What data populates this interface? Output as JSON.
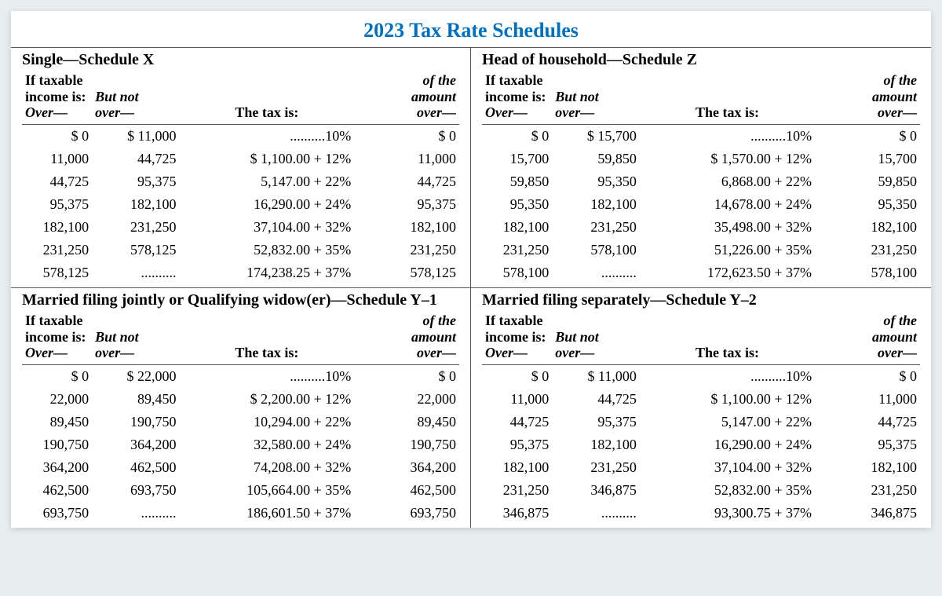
{
  "title": "2023 Tax Rate Schedules",
  "header": {
    "col1_line1": "If taxable",
    "col1_line2": "income is:",
    "col1_line3": "Over—",
    "col2_line1": "But not",
    "col2_line2": "over—",
    "col3": "The tax is:",
    "col4_line1": "of the",
    "col4_line2": "amount",
    "col4_line3": "over—"
  },
  "colors": {
    "title": "#0070c0",
    "rule": "#555555",
    "background": "#e8edf0",
    "text": "#000000"
  },
  "typography": {
    "title_size_pt": 20,
    "section_size_pt": 15,
    "body_size_pt": 13,
    "family": "Times New Roman / serif"
  },
  "schedules": {
    "X": {
      "title": "Single—Schedule X",
      "rows": [
        {
          "over": "$        0",
          "butnot": "$ 11,000",
          "tax": "..........10%",
          "ofamt": "$        0"
        },
        {
          "over": "11,000",
          "butnot": "44,725",
          "tax": "$   1,100.00 + 12%",
          "ofamt": "11,000"
        },
        {
          "over": "44,725",
          "butnot": "95,375",
          "tax": "5,147.00 + 22%",
          "ofamt": "44,725"
        },
        {
          "over": "95,375",
          "butnot": "182,100",
          "tax": "16,290.00 + 24%",
          "ofamt": "95,375"
        },
        {
          "over": "182,100",
          "butnot": "231,250",
          "tax": "37,104.00 + 32%",
          "ofamt": "182,100"
        },
        {
          "over": "231,250",
          "butnot": "578,125",
          "tax": "52,832.00 + 35%",
          "ofamt": "231,250"
        },
        {
          "over": "578,125",
          "butnot": "..........",
          "tax": "174,238.25 + 37%",
          "ofamt": "578,125"
        }
      ]
    },
    "Z": {
      "title": "Head of household—Schedule Z",
      "rows": [
        {
          "over": "$        0",
          "butnot": "$ 15,700",
          "tax": "..........10%",
          "ofamt": "$        0"
        },
        {
          "over": "15,700",
          "butnot": "59,850",
          "tax": "$   1,570.00 + 12%",
          "ofamt": "15,700"
        },
        {
          "over": "59,850",
          "butnot": "95,350",
          "tax": "6,868.00 + 22%",
          "ofamt": "59,850"
        },
        {
          "over": "95,350",
          "butnot": "182,100",
          "tax": "14,678.00 + 24%",
          "ofamt": "95,350"
        },
        {
          "over": "182,100",
          "butnot": "231,250",
          "tax": "35,498.00 + 32%",
          "ofamt": "182,100"
        },
        {
          "over": "231,250",
          "butnot": "578,100",
          "tax": "51,226.00 + 35%",
          "ofamt": "231,250"
        },
        {
          "over": "578,100",
          "butnot": "..........",
          "tax": "172,623.50 + 37%",
          "ofamt": "578,100"
        }
      ]
    },
    "Y1": {
      "title": "Married filing jointly or Qualifying widow(er)—Schedule Y–1",
      "rows": [
        {
          "over": "$        0",
          "butnot": "$ 22,000",
          "tax": "..........10%",
          "ofamt": "$        0"
        },
        {
          "over": "22,000",
          "butnot": "89,450",
          "tax": "$   2,200.00 + 12%",
          "ofamt": "22,000"
        },
        {
          "over": "89,450",
          "butnot": "190,750",
          "tax": "10,294.00 + 22%",
          "ofamt": "89,450"
        },
        {
          "over": "190,750",
          "butnot": "364,200",
          "tax": "32,580.00 + 24%",
          "ofamt": "190,750"
        },
        {
          "over": "364,200",
          "butnot": "462,500",
          "tax": "74,208.00 + 32%",
          "ofamt": "364,200"
        },
        {
          "over": "462,500",
          "butnot": "693,750",
          "tax": "105,664.00 + 35%",
          "ofamt": "462,500"
        },
        {
          "over": "693,750",
          "butnot": "..........",
          "tax": "186,601.50 + 37%",
          "ofamt": "693,750"
        }
      ]
    },
    "Y2": {
      "title": "Married filing separately—Schedule Y–2",
      "rows": [
        {
          "over": "$        0",
          "butnot": "$ 11,000",
          "tax": "..........10%",
          "ofamt": "$        0"
        },
        {
          "over": "11,000",
          "butnot": "44,725",
          "tax": "$   1,100.00 + 12%",
          "ofamt": "11,000"
        },
        {
          "over": "44,725",
          "butnot": "95,375",
          "tax": "5,147.00 + 22%",
          "ofamt": "44,725"
        },
        {
          "over": "95,375",
          "butnot": "182,100",
          "tax": "16,290.00 + 24%",
          "ofamt": "95,375"
        },
        {
          "over": "182,100",
          "butnot": "231,250",
          "tax": "37,104.00 + 32%",
          "ofamt": "182,100"
        },
        {
          "over": "231,250",
          "butnot": "346,875",
          "tax": "52,832.00 + 35%",
          "ofamt": "231,250"
        },
        {
          "over": "346,875",
          "butnot": "..........",
          "tax": "93,300.75 + 37%",
          "ofamt": "346,875"
        }
      ]
    }
  }
}
